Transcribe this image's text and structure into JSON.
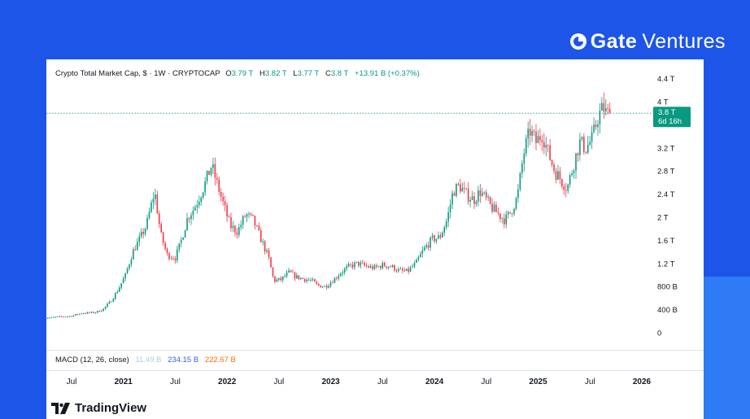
{
  "brand": {
    "name_bold": "Gate",
    "name_light": "Ventures",
    "mark_icon": "gate-logo-icon"
  },
  "colors": {
    "background": "#1d55e8",
    "up": "#089981",
    "down": "#f23645",
    "price_line": "#089981",
    "macd_line": "#2962ff",
    "signal_line": "#ff6d00",
    "histogram": "#aacde3"
  },
  "legend": {
    "title": "Crypto Total Market Cap, $ · 1W · CRYPTOCAP",
    "open_label": "O",
    "open": "3.79 T",
    "high_label": "H",
    "high": "3.82 T",
    "low_label": "L",
    "low": "3.77 T",
    "close_label": "C",
    "close": "3.8 T",
    "change": "+13.91 B (+0.37%)"
  },
  "macd": {
    "label": "MACD (12, 26, close)",
    "histogram": "11.49 B",
    "macd": "234.15 B",
    "signal": "222.67 B"
  },
  "price_badge": {
    "value": "3.8 T",
    "countdown": "6d 16h"
  },
  "footer": {
    "logo_text": "TradingView",
    "logo_icon": "tradingview-logo-icon"
  },
  "chart_data": {
    "type": "candlestick",
    "title": "Crypto Total Market Cap, $ · 1W · CRYPTOCAP",
    "interval": "1W",
    "y_axis": {
      "position": "right",
      "ticks": [
        {
          "label": "0",
          "value": 0
        },
        {
          "label": "400 B",
          "value": 0.4
        },
        {
          "label": "800 B",
          "value": 0.8
        },
        {
          "label": "1.2 T",
          "value": 1.2
        },
        {
          "label": "1.6 T",
          "value": 1.6
        },
        {
          "label": "2 T",
          "value": 2.0
        },
        {
          "label": "2.4 T",
          "value": 2.4
        },
        {
          "label": "2.8 T",
          "value": 2.8
        },
        {
          "label": "3.2 T",
          "value": 3.2
        },
        {
          "label": "4 T",
          "value": 4.0
        },
        {
          "label": "4.4 T",
          "value": 4.4
        }
      ],
      "unit": "trillion USD"
    },
    "x_axis": {
      "ticks": [
        {
          "label": "Jul",
          "t": 2020.5,
          "bold": false
        },
        {
          "label": "2021",
          "t": 2021.0,
          "bold": true
        },
        {
          "label": "Jul",
          "t": 2021.5,
          "bold": false
        },
        {
          "label": "2022",
          "t": 2022.0,
          "bold": true
        },
        {
          "label": "Jul",
          "t": 2022.5,
          "bold": false
        },
        {
          "label": "2023",
          "t": 2023.0,
          "bold": true
        },
        {
          "label": "Jul",
          "t": 2023.5,
          "bold": false
        },
        {
          "label": "2024",
          "t": 2024.0,
          "bold": true
        },
        {
          "label": "Jul",
          "t": 2024.5,
          "bold": false
        },
        {
          "label": "2025",
          "t": 2025.0,
          "bold": true
        },
        {
          "label": "Jul",
          "t": 2025.5,
          "bold": false
        },
        {
          "label": "2026",
          "t": 2026.0,
          "bold": true
        }
      ]
    },
    "grid": false,
    "current_price": 3.8,
    "series_points": [
      [
        2020.23,
        0.25
      ],
      [
        2020.35,
        0.27
      ],
      [
        2020.5,
        0.29
      ],
      [
        2020.6,
        0.34
      ],
      [
        2020.72,
        0.35
      ],
      [
        2020.8,
        0.4
      ],
      [
        2020.88,
        0.55
      ],
      [
        2020.95,
        0.75
      ],
      [
        2021.02,
        1.0
      ],
      [
        2021.09,
        1.4
      ],
      [
        2021.15,
        1.6
      ],
      [
        2021.22,
        1.85
      ],
      [
        2021.3,
        2.45
      ],
      [
        2021.36,
        1.7
      ],
      [
        2021.42,
        1.35
      ],
      [
        2021.5,
        1.3
      ],
      [
        2021.55,
        1.55
      ],
      [
        2021.62,
        2.0
      ],
      [
        2021.68,
        2.15
      ],
      [
        2021.72,
        2.3
      ],
      [
        2021.78,
        2.55
      ],
      [
        2021.85,
        2.9
      ],
      [
        2021.9,
        2.6
      ],
      [
        2021.96,
        2.25
      ],
      [
        2022.03,
        1.85
      ],
      [
        2022.1,
        1.75
      ],
      [
        2022.18,
        2.05
      ],
      [
        2022.25,
        1.95
      ],
      [
        2022.32,
        1.65
      ],
      [
        2022.4,
        1.3
      ],
      [
        2022.45,
        0.9
      ],
      [
        2022.52,
        0.92
      ],
      [
        2022.6,
        1.05
      ],
      [
        2022.66,
        0.97
      ],
      [
        2022.74,
        0.93
      ],
      [
        2022.82,
        0.9
      ],
      [
        2022.87,
        0.82
      ],
      [
        2022.95,
        0.8
      ],
      [
        2023.03,
        0.92
      ],
      [
        2023.1,
        1.05
      ],
      [
        2023.18,
        1.15
      ],
      [
        2023.26,
        1.2
      ],
      [
        2023.34,
        1.15
      ],
      [
        2023.42,
        1.12
      ],
      [
        2023.5,
        1.17
      ],
      [
        2023.58,
        1.15
      ],
      [
        2023.66,
        1.07
      ],
      [
        2023.74,
        1.06
      ],
      [
        2023.82,
        1.2
      ],
      [
        2023.9,
        1.45
      ],
      [
        2023.98,
        1.62
      ],
      [
        2024.05,
        1.65
      ],
      [
        2024.12,
        1.95
      ],
      [
        2024.18,
        2.45
      ],
      [
        2024.24,
        2.55
      ],
      [
        2024.3,
        2.4
      ],
      [
        2024.38,
        2.3
      ],
      [
        2024.44,
        2.45
      ],
      [
        2024.5,
        2.3
      ],
      [
        2024.56,
        2.15
      ],
      [
        2024.62,
        2.05
      ],
      [
        2024.68,
        1.95
      ],
      [
        2024.74,
        2.1
      ],
      [
        2024.8,
        2.35
      ],
      [
        2024.86,
        3.1
      ],
      [
        2024.92,
        3.5
      ],
      [
        2024.98,
        3.3
      ],
      [
        2025.04,
        3.45
      ],
      [
        2025.1,
        3.1
      ],
      [
        2025.16,
        2.8
      ],
      [
        2025.22,
        2.65
      ],
      [
        2025.28,
        2.5
      ],
      [
        2025.34,
        2.9
      ],
      [
        2025.4,
        3.3
      ],
      [
        2025.46,
        3.2
      ],
      [
        2025.52,
        3.35
      ],
      [
        2025.58,
        3.75
      ],
      [
        2025.63,
        3.9
      ],
      [
        2025.66,
        3.78
      ],
      [
        2025.7,
        3.8
      ]
    ]
  }
}
